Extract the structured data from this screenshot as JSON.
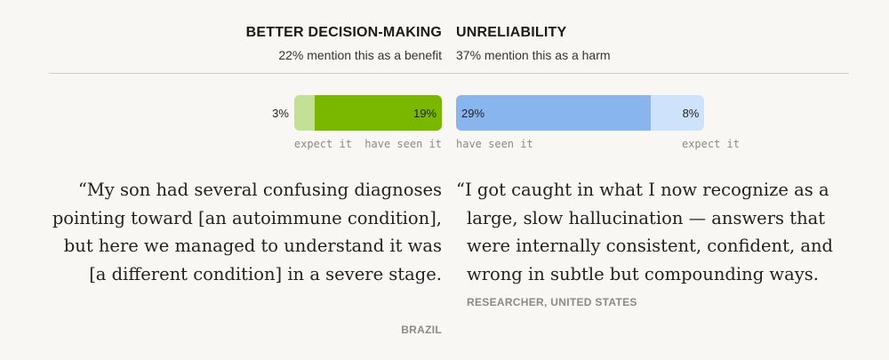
{
  "chart_data": [
    {
      "type": "bar",
      "title": "BETTER DECISION-MAKING",
      "subtitle": "22% mention this as a benefit",
      "series": [
        {
          "name": "have seen it",
          "color": "#7ab800",
          "values": [
            19
          ],
          "value_labels": [
            "19%"
          ]
        },
        {
          "name": "expect it",
          "color": "#c4e096",
          "values": [
            3
          ],
          "value_labels": [
            "3%"
          ]
        }
      ],
      "quote": "“My son had several confusing diagnoses pointing toward [an autoimmune condition], but here we managed to understand it was [a different condition] in a severe stage.",
      "attribution": "BRAZIL"
    },
    {
      "type": "bar",
      "title": "UNRELIABILITY",
      "subtitle": "37% mention this as a harm",
      "series": [
        {
          "name": "have seen it",
          "color": "#89b5ef",
          "values": [
            29
          ],
          "value_labels": [
            "29%"
          ]
        },
        {
          "name": "expect it",
          "color": "#cfe2fb",
          "values": [
            8
          ],
          "value_labels": [
            "8%"
          ]
        }
      ],
      "quote": "“I got caught in what I now recognize as a large, slow hallucination — answers that were internally consistent, confident, and wrong in subtle but compounding ways.",
      "attribution": "RESEARCHER, UNITED STATES"
    }
  ]
}
